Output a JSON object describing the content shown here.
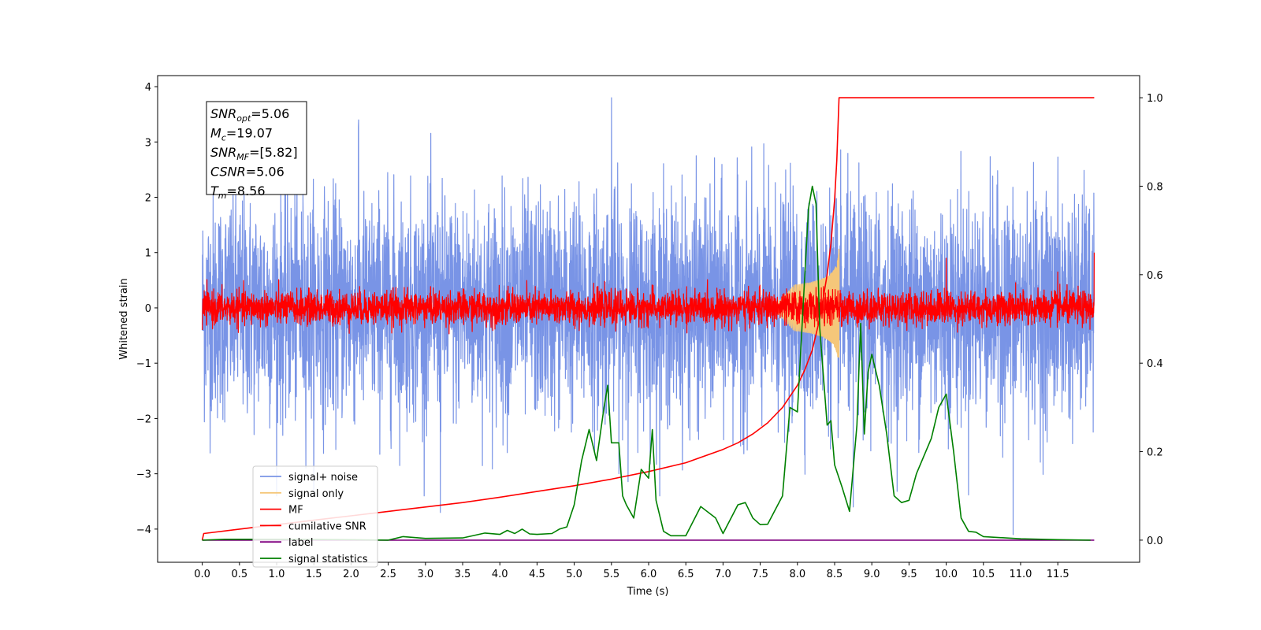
{
  "chart_data": {
    "type": "line",
    "xlabel": "Time (s)",
    "ylabel": "Whitened strain",
    "xlim": [
      -0.6,
      12.6
    ],
    "ylim": [
      -4.6,
      4.2
    ],
    "y2lim": [
      -0.05,
      1.05
    ],
    "x_ticks": [
      0.0,
      0.5,
      1.0,
      1.5,
      2.0,
      2.5,
      3.0,
      3.5,
      4.0,
      4.5,
      5.0,
      5.5,
      6.0,
      6.5,
      7.0,
      7.5,
      8.0,
      8.5,
      9.0,
      9.5,
      10.0,
      10.5,
      11.0,
      11.5
    ],
    "x_tick_labels": [
      "0.0",
      "0.5",
      "1.0",
      "1.5",
      "2.0",
      "2.5",
      "3.0",
      "3.5",
      "4.0",
      "4.5",
      "5.0",
      "5.5",
      "6.0",
      "6.5",
      "7.0",
      "7.5",
      "8.0",
      "8.5",
      "9.0",
      "9.5",
      "10.0",
      "10.5",
      "11.0",
      "11.5"
    ],
    "y_ticks": [
      -4,
      -3,
      -2,
      -1,
      0,
      1,
      2,
      3,
      4
    ],
    "y_tick_labels": [
      "−4",
      "−3",
      "−2",
      "−1",
      "0",
      "1",
      "2",
      "3",
      "4"
    ],
    "y2_ticks": [
      0.0,
      0.2,
      0.4,
      0.6,
      0.8,
      1.0
    ],
    "y2_tick_labels": [
      "0.0",
      "0.2",
      "0.4",
      "0.6",
      "0.8",
      "1.0"
    ],
    "grid": false,
    "legend_position": "lower-left",
    "annotation": {
      "lines": [
        {
          "base": "SNR",
          "sub": "opt",
          "value": "=5.06"
        },
        {
          "base": "M",
          "sub": "c",
          "value": "=19.07"
        },
        {
          "base": "SNR",
          "sub": "MF",
          "value": "=[5.82]"
        },
        {
          "base": "CSNR",
          "sub": "",
          "value": "=5.06"
        },
        {
          "base": "T",
          "sub": "m",
          "value": "=8.56"
        }
      ]
    },
    "series": [
      {
        "name": "signal+ noise",
        "color": "#7994e6",
        "axis": "left",
        "kind": "noise",
        "x_range": [
          0.0,
          11.99
        ],
        "sigma": 1.0,
        "spikes": [
          [
            5.5,
            3.8
          ],
          [
            10.9,
            -4.1
          ],
          [
            2.1,
            3.4
          ],
          [
            3.2,
            -3.7
          ],
          [
            8.75,
            -3.6
          ]
        ]
      },
      {
        "name": "signal only",
        "color": "#f5c77a",
        "axis": "left",
        "kind": "chirp",
        "x_range": [
          7.7,
          8.56
        ],
        "peak_amplitude": 1.1
      },
      {
        "name": "MF",
        "color": "#ff0000",
        "axis": "left",
        "kind": "noise",
        "x_range": [
          0.0,
          11.99
        ],
        "sigma": 0.15,
        "spikes": [
          [
            0.0,
            0.9
          ],
          [
            0.0,
            -0.4
          ],
          [
            11.99,
            1.0
          ],
          [
            10.0,
            0.9
          ],
          [
            11.5,
            0.65
          ]
        ]
      },
      {
        "name": "cumilative SNR",
        "color": "#ff0000",
        "axis": "right",
        "x": [
          0.0,
          0.02,
          0.5,
          1.0,
          1.5,
          2.0,
          2.5,
          3.0,
          3.5,
          4.0,
          4.5,
          5.0,
          5.5,
          6.0,
          6.5,
          7.0,
          7.2,
          7.4,
          7.6,
          7.8,
          8.0,
          8.1,
          8.2,
          8.3,
          8.4,
          8.45,
          8.5,
          8.53,
          8.56,
          11.99
        ],
        "values": [
          0.0,
          0.015,
          0.025,
          0.035,
          0.045,
          0.055,
          0.065,
          0.075,
          0.085,
          0.097,
          0.11,
          0.123,
          0.138,
          0.155,
          0.175,
          0.205,
          0.22,
          0.24,
          0.265,
          0.3,
          0.35,
          0.385,
          0.43,
          0.5,
          0.6,
          0.67,
          0.77,
          0.86,
          1.0,
          1.0
        ]
      },
      {
        "name": "label",
        "color": "#800080",
        "axis": "right",
        "x": [
          0.0,
          11.99
        ],
        "values": [
          0.0,
          0.0
        ]
      },
      {
        "name": "signal statistics",
        "color": "#008000",
        "axis": "right",
        "x": [
          0.0,
          0.3,
          1.0,
          2.0,
          2.5,
          2.7,
          3.0,
          3.5,
          3.8,
          4.0,
          4.1,
          4.2,
          4.3,
          4.4,
          4.5,
          4.7,
          4.8,
          4.9,
          5.0,
          5.1,
          5.2,
          5.3,
          5.4,
          5.45,
          5.5,
          5.55,
          5.6,
          5.65,
          5.7,
          5.8,
          5.9,
          6.0,
          6.05,
          6.1,
          6.2,
          6.3,
          6.5,
          6.7,
          6.9,
          7.0,
          7.2,
          7.3,
          7.4,
          7.5,
          7.6,
          7.8,
          7.9,
          8.0,
          8.1,
          8.15,
          8.2,
          8.25,
          8.3,
          8.4,
          8.45,
          8.5,
          8.6,
          8.7,
          8.8,
          8.85,
          8.9,
          8.95,
          9.0,
          9.1,
          9.2,
          9.3,
          9.4,
          9.5,
          9.6,
          9.8,
          9.9,
          10.0,
          10.1,
          10.2,
          10.3,
          10.4,
          10.5,
          11.0,
          11.5,
          11.94
        ],
        "values": [
          0.0,
          0.002,
          0.002,
          0.001,
          0.0,
          0.008,
          0.004,
          0.005,
          0.016,
          0.013,
          0.022,
          0.015,
          0.025,
          0.014,
          0.013,
          0.015,
          0.025,
          0.03,
          0.08,
          0.18,
          0.25,
          0.18,
          0.3,
          0.35,
          0.22,
          0.22,
          0.22,
          0.1,
          0.08,
          0.05,
          0.16,
          0.14,
          0.25,
          0.09,
          0.02,
          0.01,
          0.01,
          0.076,
          0.05,
          0.015,
          0.08,
          0.085,
          0.05,
          0.035,
          0.036,
          0.1,
          0.3,
          0.29,
          0.6,
          0.75,
          0.8,
          0.76,
          0.48,
          0.26,
          0.27,
          0.17,
          0.12,
          0.065,
          0.26,
          0.49,
          0.24,
          0.38,
          0.42,
          0.35,
          0.24,
          0.1,
          0.085,
          0.09,
          0.15,
          0.23,
          0.3,
          0.33,
          0.2,
          0.05,
          0.02,
          0.018,
          0.008,
          0.003,
          0.001,
          0.0
        ]
      }
    ]
  }
}
